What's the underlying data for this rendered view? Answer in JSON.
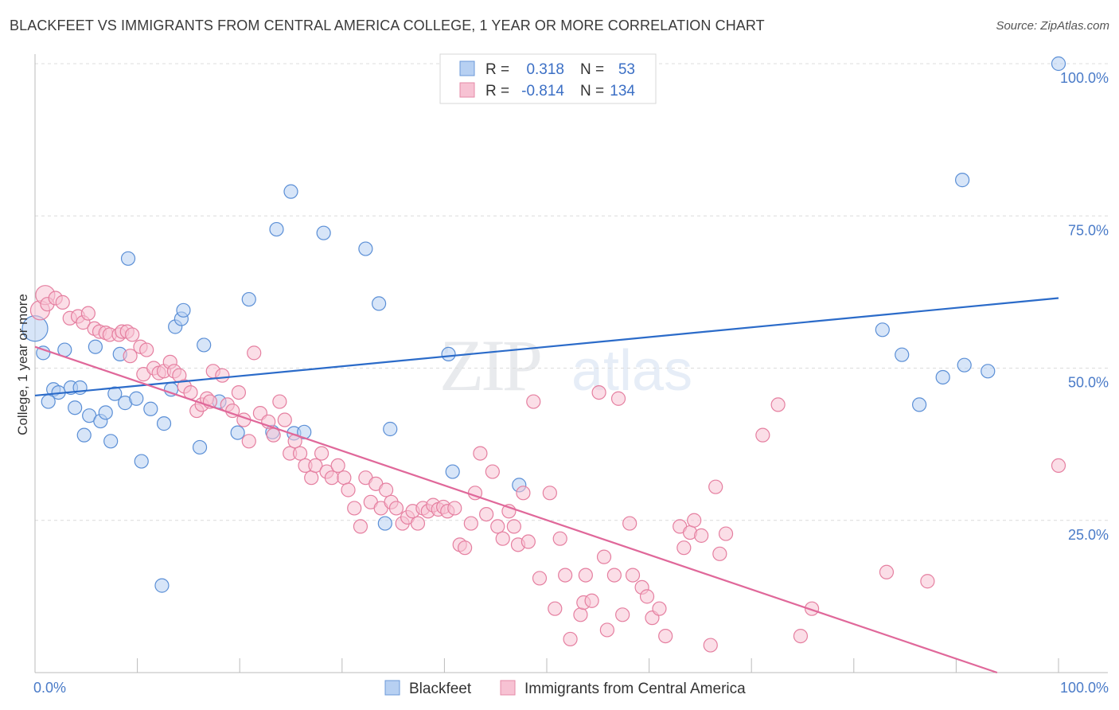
{
  "title": "BLACKFEET VS IMMIGRANTS FROM CENTRAL AMERICA COLLEGE, 1 YEAR OR MORE CORRELATION CHART",
  "source": "Source: ZipAtlas.com",
  "watermark": {
    "zip": "ZIP",
    "atlas": "atlas"
  },
  "colors": {
    "blue": "#5b8fd6",
    "blue_fill": "#b7d0f2",
    "blue_line": "#2b6bc9",
    "pink": "#e57fa0",
    "pink_fill": "#f7c2d3",
    "pink_line": "#e0689a"
  },
  "legend": {
    "rows": [
      {
        "r_label": "R =",
        "r_value": "0.318",
        "n_label": "N =",
        "n_value": "53"
      },
      {
        "r_label": "R =",
        "r_value": "-0.814",
        "n_label": "N =",
        "n_value": "134"
      }
    ]
  },
  "bottom_legend": [
    "Blackfeet",
    "Immigrants from Central America"
  ],
  "chart_data": {
    "type": "scatter",
    "title": "BLACKFEET VS IMMIGRANTS FROM CENTRAL AMERICA COLLEGE, 1 YEAR OR MORE CORRELATION CHART",
    "xlabel": "",
    "ylabel": "College, 1 year or more",
    "xlim": [
      0,
      100
    ],
    "ylim": [
      0,
      100
    ],
    "x_tick_labels": [
      "0.0%",
      "100.0%"
    ],
    "y_tick_labels": [
      "25.0%",
      "50.0%",
      "75.0%",
      "100.0%"
    ],
    "y_ticks": [
      25,
      50,
      75,
      100
    ],
    "grid": true,
    "legend_position": "top-center",
    "series": [
      {
        "name": "Blackfeet",
        "r": 0.318,
        "n": 53,
        "trend": [
          [
            0,
            45.5
          ],
          [
            100,
            61.5
          ]
        ],
        "points": [
          [
            0,
            56.5
          ],
          [
            0.8,
            52.5
          ],
          [
            1.3,
            44.5
          ],
          [
            1.8,
            46.5
          ],
          [
            2.3,
            46
          ],
          [
            2.9,
            53
          ],
          [
            3.5,
            46.8
          ],
          [
            3.9,
            43.5
          ],
          [
            4.4,
            46.8
          ],
          [
            4.8,
            39
          ],
          [
            5.3,
            42.2
          ],
          [
            5.9,
            53.5
          ],
          [
            6.4,
            41.3
          ],
          [
            6.9,
            42.7
          ],
          [
            7.4,
            38
          ],
          [
            7.8,
            45.8
          ],
          [
            8.3,
            52.3
          ],
          [
            8.8,
            44.3
          ],
          [
            9.1,
            68
          ],
          [
            9.9,
            45
          ],
          [
            10.4,
            34.7
          ],
          [
            11.3,
            43.3
          ],
          [
            12.6,
            40.9
          ],
          [
            13.3,
            46.5
          ],
          [
            13.7,
            56.8
          ],
          [
            14.3,
            58.1
          ],
          [
            14.5,
            59.5
          ],
          [
            16.1,
            37
          ],
          [
            16.5,
            53.8
          ],
          [
            18,
            44.5
          ],
          [
            19.8,
            39.4
          ],
          [
            20.9,
            61.3
          ],
          [
            23.2,
            39.5
          ],
          [
            23.6,
            72.8
          ],
          [
            25,
            79
          ],
          [
            25.3,
            39.3
          ],
          [
            26.3,
            39.5
          ],
          [
            28.2,
            72.2
          ],
          [
            32.3,
            69.6
          ],
          [
            33.6,
            60.6
          ],
          [
            34.2,
            24.5
          ],
          [
            34.7,
            40
          ],
          [
            40.4,
            52.3
          ],
          [
            40.8,
            33
          ],
          [
            47.3,
            30.8
          ],
          [
            12.4,
            14.3
          ],
          [
            82.8,
            56.3
          ],
          [
            84.7,
            52.2
          ],
          [
            86.4,
            44
          ],
          [
            88.7,
            48.5
          ],
          [
            90.6,
            80.9
          ],
          [
            90.8,
            50.5
          ],
          [
            93.1,
            49.5
          ],
          [
            100,
            100
          ]
        ]
      },
      {
        "name": "Immigrants from Central America",
        "r": -0.814,
        "n": 134,
        "trend": [
          [
            0,
            53.5
          ],
          [
            94,
            0
          ]
        ],
        "points": [
          [
            0.5,
            59.5
          ],
          [
            1,
            62
          ],
          [
            1.2,
            60.5
          ],
          [
            2,
            61.5
          ],
          [
            2.7,
            60.8
          ],
          [
            3.4,
            58.2
          ],
          [
            4.2,
            58.5
          ],
          [
            4.7,
            57.5
          ],
          [
            5.2,
            59
          ],
          [
            5.8,
            56.5
          ],
          [
            6.3,
            56
          ],
          [
            6.9,
            55.8
          ],
          [
            7.3,
            55.5
          ],
          [
            8.2,
            55.5
          ],
          [
            8.5,
            56
          ],
          [
            9,
            56
          ],
          [
            9.5,
            55.5
          ],
          [
            9.3,
            52
          ],
          [
            10.3,
            53.5
          ],
          [
            10.9,
            53
          ],
          [
            10.6,
            49
          ],
          [
            11.6,
            50
          ],
          [
            12.1,
            49.2
          ],
          [
            12.6,
            49.5
          ],
          [
            13.2,
            51
          ],
          [
            13.6,
            49.5
          ],
          [
            14.1,
            48.8
          ],
          [
            14.6,
            47
          ],
          [
            15.2,
            46
          ],
          [
            15.8,
            43
          ],
          [
            16.3,
            44
          ],
          [
            16.8,
            45
          ],
          [
            17.1,
            44.5
          ],
          [
            17.4,
            49.5
          ],
          [
            18.3,
            48.8
          ],
          [
            18.8,
            44
          ],
          [
            19.3,
            43
          ],
          [
            19.9,
            46
          ],
          [
            20.4,
            41.5
          ],
          [
            20.9,
            38
          ],
          [
            21.4,
            52.5
          ],
          [
            22,
            42.6
          ],
          [
            22.8,
            41.2
          ],
          [
            23.3,
            39
          ],
          [
            23.9,
            44.5
          ],
          [
            24.4,
            41.5
          ],
          [
            24.9,
            36
          ],
          [
            25.4,
            38
          ],
          [
            25.9,
            36
          ],
          [
            26.4,
            34
          ],
          [
            27,
            32
          ],
          [
            27.4,
            34
          ],
          [
            28,
            36
          ],
          [
            28.5,
            33
          ],
          [
            29,
            32
          ],
          [
            29.6,
            34
          ],
          [
            30.2,
            32
          ],
          [
            30.6,
            30
          ],
          [
            31.2,
            27
          ],
          [
            31.8,
            24
          ],
          [
            32.3,
            32
          ],
          [
            32.8,
            28
          ],
          [
            33.3,
            31
          ],
          [
            33.8,
            27
          ],
          [
            34.3,
            30
          ],
          [
            34.8,
            28
          ],
          [
            35.3,
            27
          ],
          [
            35.9,
            24.5
          ],
          [
            36.4,
            25.5
          ],
          [
            36.9,
            26.5
          ],
          [
            37.4,
            24.5
          ],
          [
            37.9,
            27
          ],
          [
            38.4,
            26.5
          ],
          [
            38.9,
            27.5
          ],
          [
            39.4,
            26.8
          ],
          [
            39.9,
            27.2
          ],
          [
            40.3,
            26.5
          ],
          [
            41,
            27
          ],
          [
            41.5,
            21
          ],
          [
            42,
            20.5
          ],
          [
            42.6,
            24.5
          ],
          [
            43,
            29.5
          ],
          [
            43.5,
            36
          ],
          [
            44.1,
            26
          ],
          [
            44.7,
            33
          ],
          [
            45.2,
            24
          ],
          [
            45.7,
            22
          ],
          [
            46.3,
            26.5
          ],
          [
            46.8,
            24
          ],
          [
            47.2,
            21
          ],
          [
            47.7,
            29.5
          ],
          [
            48.2,
            21.5
          ],
          [
            48.7,
            44.5
          ],
          [
            49.3,
            15.5
          ],
          [
            50.3,
            29.5
          ],
          [
            50.8,
            10.5
          ],
          [
            51.3,
            22
          ],
          [
            51.8,
            16
          ],
          [
            52.3,
            5.5
          ],
          [
            53.3,
            9.5
          ],
          [
            53.6,
            11.5
          ],
          [
            53.8,
            16
          ],
          [
            54.4,
            11.8
          ],
          [
            55.1,
            46
          ],
          [
            55.6,
            19
          ],
          [
            55.9,
            7
          ],
          [
            56.6,
            16
          ],
          [
            57,
            45
          ],
          [
            57.4,
            9.5
          ],
          [
            58.1,
            24.5
          ],
          [
            58.4,
            16
          ],
          [
            59.3,
            14
          ],
          [
            59.8,
            12.5
          ],
          [
            60.3,
            9
          ],
          [
            61,
            10.5
          ],
          [
            61.6,
            6
          ],
          [
            63,
            24
          ],
          [
            63.4,
            20.5
          ],
          [
            64,
            23
          ],
          [
            64.4,
            25
          ],
          [
            65.1,
            22.5
          ],
          [
            66,
            4.5
          ],
          [
            66.5,
            30.5
          ],
          [
            66.9,
            19.5
          ],
          [
            67.5,
            22.8
          ],
          [
            71.1,
            39
          ],
          [
            72.6,
            44
          ],
          [
            74.8,
            6
          ],
          [
            75.9,
            10.5
          ],
          [
            83.2,
            16.5
          ],
          [
            87.2,
            15
          ],
          [
            100,
            34
          ]
        ]
      }
    ]
  }
}
